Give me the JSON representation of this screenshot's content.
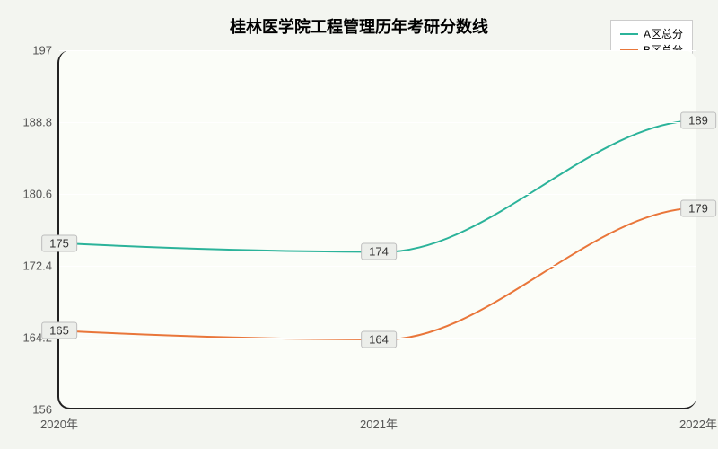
{
  "chart": {
    "type": "line",
    "title": "桂林医学院工程管理历年考研分数线",
    "title_fontsize": 18,
    "background_color": "#f3f5f0",
    "plot_background_color": "#fbfdf8",
    "grid_color": "#ffffff",
    "axis_line_color": "#222222",
    "border_radius": 14,
    "label_fontsize": 13,
    "tick_label_color": "#555555",
    "ylim": [
      156,
      197
    ],
    "yticks": [
      156,
      164.2,
      172.4,
      180.6,
      188.8,
      197
    ],
    "ytick_labels": [
      "156",
      "164.2",
      "172.4",
      "180.6",
      "188.8",
      "197"
    ],
    "x_categories": [
      "2020年",
      "2021年",
      "2022年"
    ],
    "legend": {
      "position": "top-right",
      "background": "#ffffff",
      "border_color": "#cccccc"
    },
    "series": [
      {
        "name": "A区总分",
        "color": "#2bb39a",
        "line_width": 2,
        "values": [
          175,
          174,
          189
        ],
        "labels": [
          "175",
          "174",
          "189"
        ]
      },
      {
        "name": "B区总分",
        "color": "#e9763a",
        "line_width": 2,
        "values": [
          165,
          164,
          179
        ],
        "labels": [
          "165",
          "164",
          "179"
        ]
      }
    ],
    "point_label_style": {
      "background": "#eceeea",
      "border_color": "#bdbdbd",
      "fontsize": 13
    }
  }
}
